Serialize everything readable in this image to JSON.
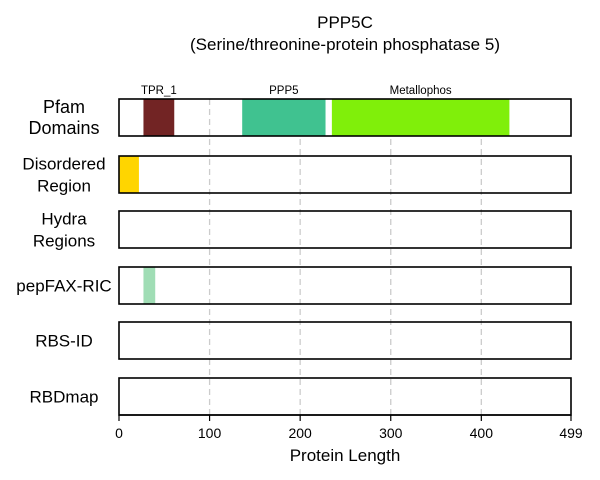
{
  "chart_data": {
    "type": "bar",
    "title": "PPP5C",
    "subtitle": "(Serine/threonine-protein phosphatase 5)",
    "xlabel": "Protein Length",
    "xlim": [
      0,
      499
    ],
    "x_ticks": [
      "0",
      "100",
      "200",
      "300",
      "400",
      "499"
    ],
    "x_tick_values": [
      0,
      100,
      200,
      300,
      400,
      499
    ],
    "grid": "vertical dashed at 100, 200, 300, 400",
    "tracks": [
      {
        "label_lines": [
          "Pfam",
          "Domains"
        ],
        "segments": [
          {
            "name": "TPR_1",
            "start": 27,
            "end": 61,
            "color": "#722424"
          },
          {
            "name": "PPP5",
            "start": 136,
            "end": 228,
            "color": "#40C290"
          },
          {
            "name": "Metallophos",
            "start": 235,
            "end": 431,
            "color": "#80EF0A"
          }
        ]
      },
      {
        "label_lines": [
          "Disordered",
          "Region"
        ],
        "segments": [
          {
            "name": "",
            "start": 0,
            "end": 22,
            "color": "#FFD500"
          }
        ]
      },
      {
        "label_lines": [
          "Hydra",
          "Regions"
        ],
        "segments": []
      },
      {
        "label_lines": [
          "pepFAX-RIC"
        ],
        "segments": [
          {
            "name": "",
            "start": 27,
            "end": 40,
            "color": "#A0DDB5"
          }
        ]
      },
      {
        "label_lines": [
          "RBS-ID"
        ],
        "segments": []
      },
      {
        "label_lines": [
          "RBDmap"
        ],
        "segments": []
      }
    ]
  }
}
